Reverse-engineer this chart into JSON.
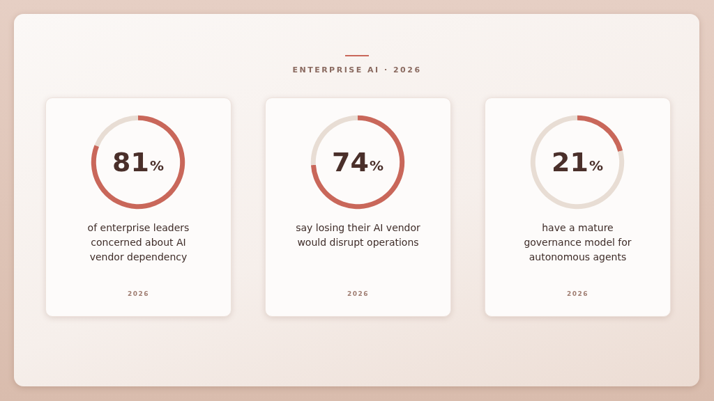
{
  "chart_data": [
    {
      "type": "donut",
      "categories": [
        null,
        null
      ],
      "values": [
        81,
        19
      ],
      "colors": [
        "#c9675a",
        "#e8ddd4"
      ],
      "value_labels": [
        "81%",
        null
      ],
      "subtitle": "of enterprise leaders concerned about AI vendor dependency",
      "annotations": [
        "2026"
      ]
    },
    {
      "type": "donut",
      "title": "ENTERPRISE AI · 2026",
      "categories": [
        null,
        null
      ],
      "values": [
        74,
        26
      ],
      "colors": [
        "#c9675a",
        "#e8ddd4"
      ],
      "value_labels": [
        "74%",
        null
      ],
      "subtitle": "say losing their AI vendor would disrupt operations",
      "annotations": [
        "2026"
      ]
    },
    {
      "type": "donut",
      "categories": [
        null,
        null
      ],
      "values": [
        21,
        79
      ],
      "colors": [
        "#c9675a",
        "#e8ddd4"
      ],
      "value_labels": [
        "21%",
        null
      ],
      "subtitle": "have a mature governance model for autonomous agents",
      "annotations": [
        "2026"
      ]
    }
  ]
}
